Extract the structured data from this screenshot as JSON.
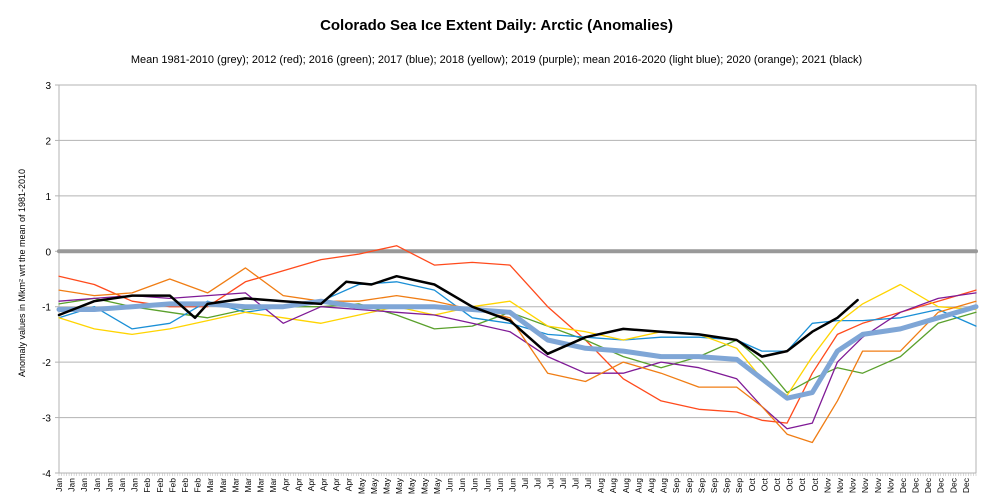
{
  "chart_data": {
    "type": "line",
    "title": "Colorado Sea Ice Extent Daily: Arctic (Anomalies)",
    "subtitle": "Mean 1981-2010 (grey); 2012 (red); 2016 (green); 2017 (blue); 2018 (yellow); 2019 (purple); mean 2016-2020 (light blue); 2020 (orange); 2021 (black)",
    "xlabel": "",
    "ylabel": "Anomaly values in Mkm² wrt the mean of 1981-2010",
    "ylim": [
      -4,
      3
    ],
    "yticks": [
      "3",
      "2",
      "1",
      "0",
      "-1",
      "-2",
      "-3",
      "-4"
    ],
    "xlim_day_of_year": [
      1,
      365
    ],
    "grid": "horizontal",
    "xtick_labels": [
      "Jan",
      "Jan",
      "Jan",
      "Jan",
      "Jan",
      "Jan",
      "Jan",
      "Feb",
      "Feb",
      "Feb",
      "Feb",
      "Feb",
      "Mar",
      "Mar",
      "Mar",
      "Mar",
      "Mar",
      "Mar",
      "Apr",
      "Apr",
      "Apr",
      "Apr",
      "Apr",
      "Apr",
      "May",
      "May",
      "May",
      "May",
      "May",
      "May",
      "May",
      "Jun",
      "Jun",
      "Jun",
      "Jun",
      "Jun",
      "Jun",
      "Jul",
      "Jul",
      "Jul",
      "Jul",
      "Jul",
      "Jul",
      "Aug",
      "Aug",
      "Aug",
      "Aug",
      "Aug",
      "Aug",
      "Sep",
      "Sep",
      "Sep",
      "Sep",
      "Sep",
      "Sep",
      "Oct",
      "Oct",
      "Oct",
      "Oct",
      "Oct",
      "Oct",
      "Nov",
      "Nov",
      "Nov",
      "Nov",
      "Nov",
      "Nov",
      "Dec",
      "Dec",
      "Dec",
      "Dec",
      "Dec",
      "Dec"
    ],
    "xtick_days": [
      1,
      6,
      11,
      16,
      21,
      26,
      31,
      36,
      41,
      46,
      51,
      56,
      61,
      66,
      71,
      76,
      81,
      86,
      91,
      96,
      101,
      106,
      111,
      116,
      121,
      126,
      131,
      136,
      141,
      146,
      151,
      156,
      161,
      166,
      171,
      176,
      181,
      186,
      191,
      196,
      201,
      206,
      211,
      216,
      221,
      226,
      231,
      236,
      241,
      246,
      251,
      256,
      261,
      266,
      271,
      276,
      281,
      286,
      291,
      296,
      301,
      306,
      311,
      316,
      321,
      326,
      331,
      336,
      341,
      346,
      351,
      356,
      361
    ],
    "series": [
      {
        "key": "mean-1981-2010",
        "color": "#999999",
        "width": 4,
        "days": [
          1,
          365
        ],
        "values": [
          0,
          0
        ]
      },
      {
        "key": "2012",
        "color": "#ff4a1c",
        "width": 1.3,
        "days": [
          1,
          15,
          30,
          45,
          60,
          75,
          90,
          105,
          120,
          135,
          150,
          165,
          180,
          195,
          210,
          225,
          240,
          255,
          270,
          280,
          290,
          300,
          310,
          320,
          335,
          350,
          365
        ],
        "values": [
          -0.45,
          -0.6,
          -0.9,
          -1.0,
          -1.0,
          -0.55,
          -0.35,
          -0.15,
          -0.05,
          0.1,
          -0.25,
          -0.2,
          -0.25,
          -1.0,
          -1.6,
          -2.3,
          -2.7,
          -2.85,
          -2.9,
          -3.05,
          -3.1,
          -2.2,
          -1.5,
          -1.3,
          -1.1,
          -0.9,
          -0.7
        ]
      },
      {
        "key": "2016",
        "color": "#5aa02c",
        "width": 1.3,
        "days": [
          1,
          15,
          30,
          45,
          60,
          75,
          90,
          105,
          120,
          135,
          150,
          165,
          180,
          195,
          210,
          225,
          240,
          255,
          270,
          280,
          290,
          300,
          310,
          320,
          335,
          350,
          365
        ],
        "values": [
          -0.95,
          -0.85,
          -1.0,
          -1.1,
          -1.2,
          -1.05,
          -1.0,
          -1.0,
          -0.95,
          -1.15,
          -1.4,
          -1.35,
          -1.1,
          -1.35,
          -1.6,
          -1.9,
          -2.1,
          -1.9,
          -1.6,
          -2.0,
          -2.55,
          -2.3,
          -2.1,
          -2.2,
          -1.9,
          -1.3,
          -1.1
        ]
      },
      {
        "key": "2017",
        "color": "#1a8fd6",
        "width": 1.3,
        "days": [
          1,
          15,
          30,
          45,
          60,
          75,
          90,
          105,
          120,
          135,
          150,
          165,
          180,
          195,
          210,
          225,
          240,
          255,
          270,
          280,
          290,
          300,
          310,
          320,
          335,
          350,
          365
        ],
        "values": [
          -1.2,
          -1.0,
          -1.4,
          -1.3,
          -0.9,
          -1.1,
          -1.0,
          -0.9,
          -0.6,
          -0.55,
          -0.7,
          -1.2,
          -1.3,
          -1.5,
          -1.55,
          -1.6,
          -1.55,
          -1.55,
          -1.6,
          -1.8,
          -1.8,
          -1.3,
          -1.25,
          -1.25,
          -1.2,
          -1.05,
          -1.35
        ]
      },
      {
        "key": "2018",
        "color": "#ffd400",
        "width": 1.3,
        "days": [
          1,
          15,
          30,
          45,
          60,
          75,
          90,
          105,
          120,
          135,
          150,
          165,
          180,
          195,
          210,
          225,
          240,
          255,
          270,
          280,
          290,
          300,
          310,
          320,
          335,
          350,
          365
        ],
        "values": [
          -1.2,
          -1.4,
          -1.5,
          -1.4,
          -1.25,
          -1.1,
          -1.2,
          -1.3,
          -1.15,
          -1.0,
          -1.15,
          -1.0,
          -0.9,
          -1.35,
          -1.45,
          -1.6,
          -1.45,
          -1.5,
          -1.75,
          -2.3,
          -2.6,
          -1.9,
          -1.3,
          -0.95,
          -0.6,
          -1.0,
          -1.05
        ]
      },
      {
        "key": "2019",
        "color": "#7f1a96",
        "width": 1.3,
        "days": [
          1,
          15,
          30,
          45,
          60,
          75,
          90,
          105,
          120,
          135,
          150,
          165,
          180,
          195,
          210,
          225,
          240,
          255,
          270,
          280,
          290,
          300,
          310,
          320,
          335,
          350,
          365
        ],
        "values": [
          -0.9,
          -0.85,
          -0.8,
          -0.85,
          -0.8,
          -0.75,
          -1.3,
          -1.0,
          -1.05,
          -1.1,
          -1.15,
          -1.3,
          -1.45,
          -1.9,
          -2.2,
          -2.2,
          -2.0,
          -2.1,
          -2.3,
          -2.8,
          -3.2,
          -3.1,
          -2.0,
          -1.55,
          -1.1,
          -0.85,
          -0.75
        ]
      },
      {
        "key": "2020",
        "color": "#f07d14",
        "width": 1.3,
        "days": [
          1,
          15,
          30,
          45,
          60,
          75,
          90,
          105,
          120,
          135,
          150,
          165,
          180,
          195,
          210,
          225,
          240,
          255,
          270,
          280,
          290,
          300,
          310,
          320,
          335,
          350,
          365
        ],
        "values": [
          -0.7,
          -0.8,
          -0.75,
          -0.5,
          -0.75,
          -0.3,
          -0.8,
          -0.9,
          -0.9,
          -0.8,
          -0.9,
          -1.05,
          -1.2,
          -2.2,
          -2.35,
          -2.0,
          -2.2,
          -2.45,
          -2.45,
          -2.8,
          -3.3,
          -3.45,
          -2.7,
          -1.8,
          -1.8,
          -1.1,
          -0.9
        ]
      },
      {
        "key": "mean-2016-2020",
        "color": "#7fa6d6",
        "width": 5,
        "days": [
          1,
          15,
          30,
          45,
          60,
          75,
          90,
          105,
          120,
          135,
          150,
          165,
          180,
          195,
          210,
          225,
          240,
          255,
          270,
          280,
          290,
          300,
          310,
          320,
          335,
          350,
          365
        ],
        "values": [
          -1.05,
          -1.05,
          -1.0,
          -0.95,
          -0.95,
          -1.0,
          -1.0,
          -0.9,
          -1.0,
          -1.0,
          -1.0,
          -1.05,
          -1.1,
          -1.6,
          -1.75,
          -1.8,
          -1.9,
          -1.9,
          -1.95,
          -2.3,
          -2.65,
          -2.55,
          -1.8,
          -1.5,
          -1.4,
          -1.2,
          -1.0
        ]
      },
      {
        "key": "2021",
        "color": "#000000",
        "width": 2.5,
        "days": [
          1,
          15,
          30,
          45,
          55,
          60,
          75,
          90,
          105,
          115,
          125,
          135,
          150,
          165,
          180,
          195,
          210,
          225,
          240,
          255,
          270,
          280,
          290,
          300,
          310,
          318
        ],
        "values": [
          -1.15,
          -0.9,
          -0.8,
          -0.8,
          -1.2,
          -0.95,
          -0.85,
          -0.9,
          -0.95,
          -0.55,
          -0.6,
          -0.45,
          -0.6,
          -1.0,
          -1.25,
          -1.85,
          -1.55,
          -1.4,
          -1.45,
          -1.5,
          -1.6,
          -1.9,
          -1.8,
          -1.45,
          -1.2,
          -0.88
        ]
      }
    ]
  }
}
